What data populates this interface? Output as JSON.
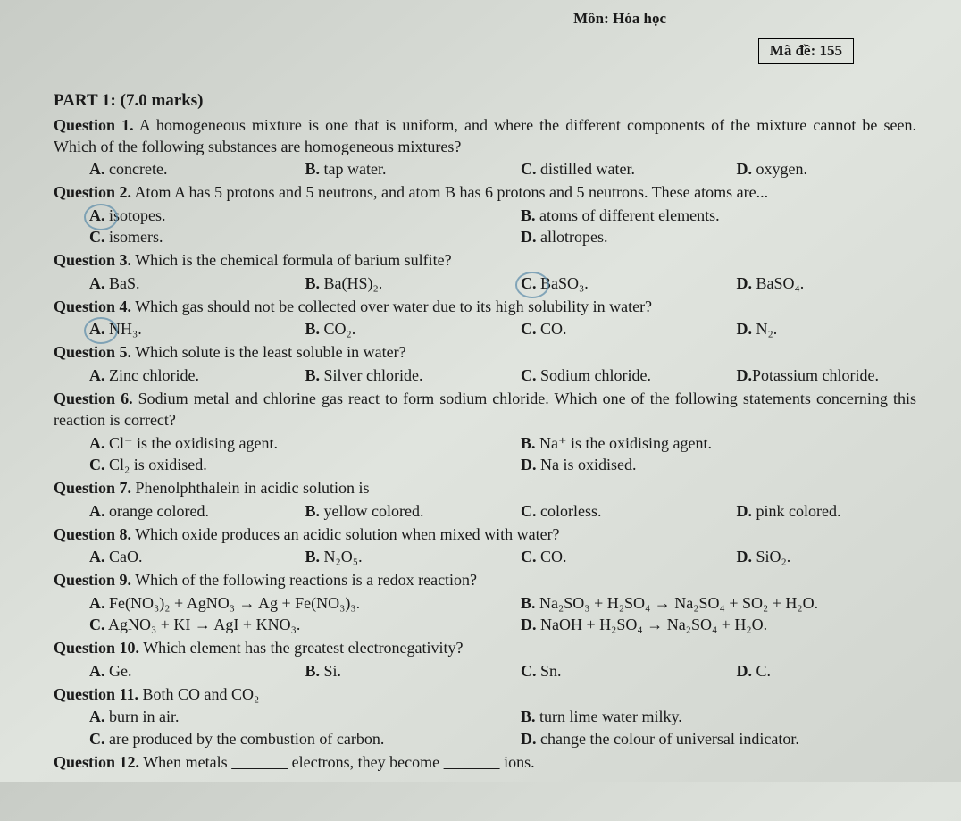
{
  "header": {
    "subject": "Môn: Hóa học",
    "code_label": "Mã đề:",
    "code_value": "155"
  },
  "part_title": "PART 1: (7.0 marks)",
  "q1": {
    "label": "Question 1.",
    "text_a": " A homogeneous mixture is one that is uniform, and where the different components of the mixture cannot be seen. Which of the following substances are homogeneous mixtures?",
    "A": " concrete.",
    "B": " tap water.",
    "C": " distilled water.",
    "D": " oxygen."
  },
  "q2": {
    "label": "Question 2.",
    "text": " Atom A has 5 protons and 5 neutrons, and atom B has 6 protons and 5 neutrons. These atoms are...",
    "A": " isotopes.",
    "B": " atoms of different elements.",
    "C": " isomers.",
    "D": " allotropes."
  },
  "q3": {
    "label": "Question 3.",
    "text": " Which is the chemical formula of barium sulfite?",
    "A": " BaS.",
    "B": " Ba(HS)₂.",
    "C": " BaSO₃.",
    "D": " BaSO₄."
  },
  "q4": {
    "label": "Question 4.",
    "text": " Which gas should not be collected over water due to its high solubility in water?",
    "A": " NH₃.",
    "B": " CO₂.",
    "C": " CO.",
    "D": " N₂."
  },
  "q5": {
    "label": "Question 5.",
    "text": " Which solute is the least soluble in water?",
    "A": " Zinc chloride.",
    "B": " Silver chloride.",
    "C": " Sodium chloride.",
    "D": "Potassium chloride."
  },
  "q6": {
    "label": "Question 6.",
    "text": " Sodium metal and chlorine gas react to form sodium chloride. Which one of the following statements concerning this reaction is correct?",
    "A": " Cl⁻ is the oxidising agent.",
    "B": " Na⁺ is the oxidising agent.",
    "C": " Cl₂ is oxidised.",
    "D": " Na is oxidised."
  },
  "q7": {
    "label": "Question 7.",
    "text": " Phenolphthalein in acidic solution is",
    "A": " orange colored.",
    "B": " yellow colored.",
    "C": " colorless.",
    "D": " pink colored."
  },
  "q8": {
    "label": "Question 8.",
    "text": " Which oxide produces an acidic solution when mixed with water?",
    "A": " CaO.",
    "B": " N₂O₅.",
    "C": " CO.",
    "D": " SiO₂."
  },
  "q9": {
    "label": "Question 9.",
    "text": " Which of the following reactions is a redox reaction?",
    "A": " Fe(NO₃)₂ + AgNO₃ → Ag + Fe(NO₃)₃.",
    "B": " Na₂SO₃ + H₂SO₄ → Na₂SO₄ + SO₂ + H₂O.",
    "C": " AgNO₃ + KI → AgI + KNO₃.",
    "D": " NaOH + H₂SO₄ → Na₂SO₄ + H₂O."
  },
  "q10": {
    "label": "Question 10.",
    "text": " Which element has the greatest electronegativity?",
    "A": " Ge.",
    "B": " Si.",
    "C": " Sn.",
    "D": " C."
  },
  "q11": {
    "label": "Question 11.",
    "text": " Both CO and CO₂",
    "A": " burn in air.",
    "B": " turn lime water milky.",
    "C": " are produced by the combustion of carbon.",
    "D": " change the colour of universal indicator."
  },
  "q12": {
    "label": "Question 12.",
    "text_a": " When metals ",
    "blank1": "              ",
    "text_b": " electrons, they become ",
    "blank2": "              ",
    "text_c": " ions."
  },
  "letters": {
    "A": "A.",
    "B": "B.",
    "C": "C.",
    "D": "D."
  }
}
